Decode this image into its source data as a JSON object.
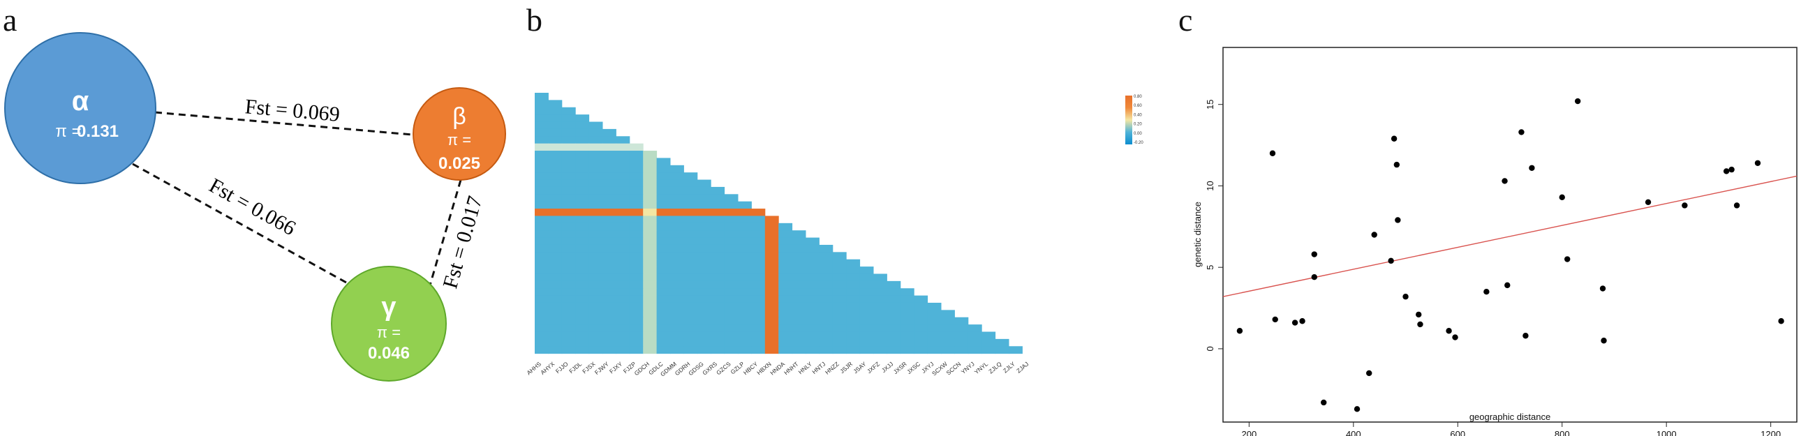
{
  "panels": {
    "a": {
      "letter": "a"
    },
    "b": {
      "letter": "b"
    },
    "c": {
      "letter": "c"
    }
  },
  "network": {
    "nodes": [
      {
        "id": "alpha",
        "symbol": "α",
        "pi_label": "π =",
        "pi_value": "0.131",
        "color": "#5B9BD5",
        "stroke": "#2E6FA8"
      },
      {
        "id": "beta",
        "symbol": "β",
        "pi_label": "π =",
        "pi_value": "0.025",
        "color": "#ED7D31",
        "stroke": "#C55A11"
      },
      {
        "id": "gamma",
        "symbol": "γ",
        "pi_label": "π =",
        "pi_value": "0.046",
        "color": "#92D050",
        "stroke": "#5EA82A"
      }
    ],
    "edges": [
      {
        "from": "alpha",
        "to": "beta",
        "label": "Fst = 0.069"
      },
      {
        "from": "alpha",
        "to": "gamma",
        "label": "Fst = 0.066"
      },
      {
        "from": "beta",
        "to": "gamma",
        "label": "Fst = 0.017"
      }
    ]
  },
  "chart_data": [
    {
      "type": "heatmap",
      "x_labels": [
        "AHHS",
        "AHYX",
        "FJJO",
        "FJDL",
        "FJSX",
        "FJWY",
        "FJXY",
        "FJZP",
        "GDCH",
        "GDLC",
        "GDMM",
        "GDRH",
        "GDSG",
        "GXRS",
        "GZCS",
        "GZLP",
        "HBCY",
        "HBXN",
        "HNDA",
        "HNHT",
        "HNLY",
        "HNTJ",
        "HNZZ",
        "JSJR",
        "JSAY",
        "JXFZ",
        "JXJJ",
        "JXSR",
        "JXSC",
        "JXYJ",
        "SCXW",
        "SCCN",
        "YNYJ",
        "YNYL",
        "ZJLQ",
        "ZJLY",
        "ZJAJ"
      ],
      "highlight_columns": [
        "GDCH",
        "HBXN"
      ],
      "highlight_rows": [
        "GDCH",
        "HBXN"
      ],
      "legend_ticks": [
        "0.80",
        "0.60",
        "0.40",
        "0.20",
        "0.00",
        "-0.20"
      ],
      "color_scale": [
        "#0C8DCF",
        "#4FB3D8",
        "#F4E6A3",
        "#F08A3B",
        "#E8702A"
      ],
      "value_range": [
        -0.2,
        0.8
      ]
    },
    {
      "type": "scatter",
      "xlabel": "geographic distance",
      "ylabel": "genetic distance",
      "xlim": [
        150,
        1250
      ],
      "ylim": [
        -4.5,
        18.5
      ],
      "x_ticks": [
        200,
        400,
        600,
        800,
        1000,
        1200
      ],
      "y_ticks": [
        0,
        5,
        10,
        15
      ],
      "points": [
        {
          "x": 182,
          "y": 1.1
        },
        {
          "x": 245,
          "y": 12.0
        },
        {
          "x": 250,
          "y": 1.8
        },
        {
          "x": 288,
          "y": 1.6
        },
        {
          "x": 302,
          "y": 1.7
        },
        {
          "x": 325,
          "y": 5.8
        },
        {
          "x": 325,
          "y": 4.4
        },
        {
          "x": 343,
          "y": -3.3
        },
        {
          "x": 407,
          "y": -3.7
        },
        {
          "x": 430,
          "y": -1.5
        },
        {
          "x": 440,
          "y": 7.0
        },
        {
          "x": 472,
          "y": 5.4
        },
        {
          "x": 478,
          "y": 12.9
        },
        {
          "x": 483,
          "y": 11.3
        },
        {
          "x": 485,
          "y": 7.9
        },
        {
          "x": 500,
          "y": 3.2
        },
        {
          "x": 525,
          "y": 2.1
        },
        {
          "x": 528,
          "y": 1.5
        },
        {
          "x": 583,
          "y": 1.1
        },
        {
          "x": 595,
          "y": 0.7
        },
        {
          "x": 655,
          "y": 3.5
        },
        {
          "x": 690,
          "y": 10.3
        },
        {
          "x": 695,
          "y": 3.9
        },
        {
          "x": 722,
          "y": 13.3
        },
        {
          "x": 730,
          "y": 0.8
        },
        {
          "x": 742,
          "y": 11.1
        },
        {
          "x": 800,
          "y": 9.3
        },
        {
          "x": 810,
          "y": 5.5
        },
        {
          "x": 830,
          "y": 15.2
        },
        {
          "x": 878,
          "y": 3.7
        },
        {
          "x": 880,
          "y": 0.5
        },
        {
          "x": 965,
          "y": 9.0
        },
        {
          "x": 1035,
          "y": 8.8
        },
        {
          "x": 1115,
          "y": 10.9
        },
        {
          "x": 1125,
          "y": 11.0
        },
        {
          "x": 1135,
          "y": 8.8
        },
        {
          "x": 1175,
          "y": 11.4
        },
        {
          "x": 1220,
          "y": 1.7
        }
      ],
      "regression_line": {
        "x": [
          150,
          1250
        ],
        "y": [
          3.2,
          10.6
        ],
        "color": "#D9534F"
      }
    }
  ]
}
